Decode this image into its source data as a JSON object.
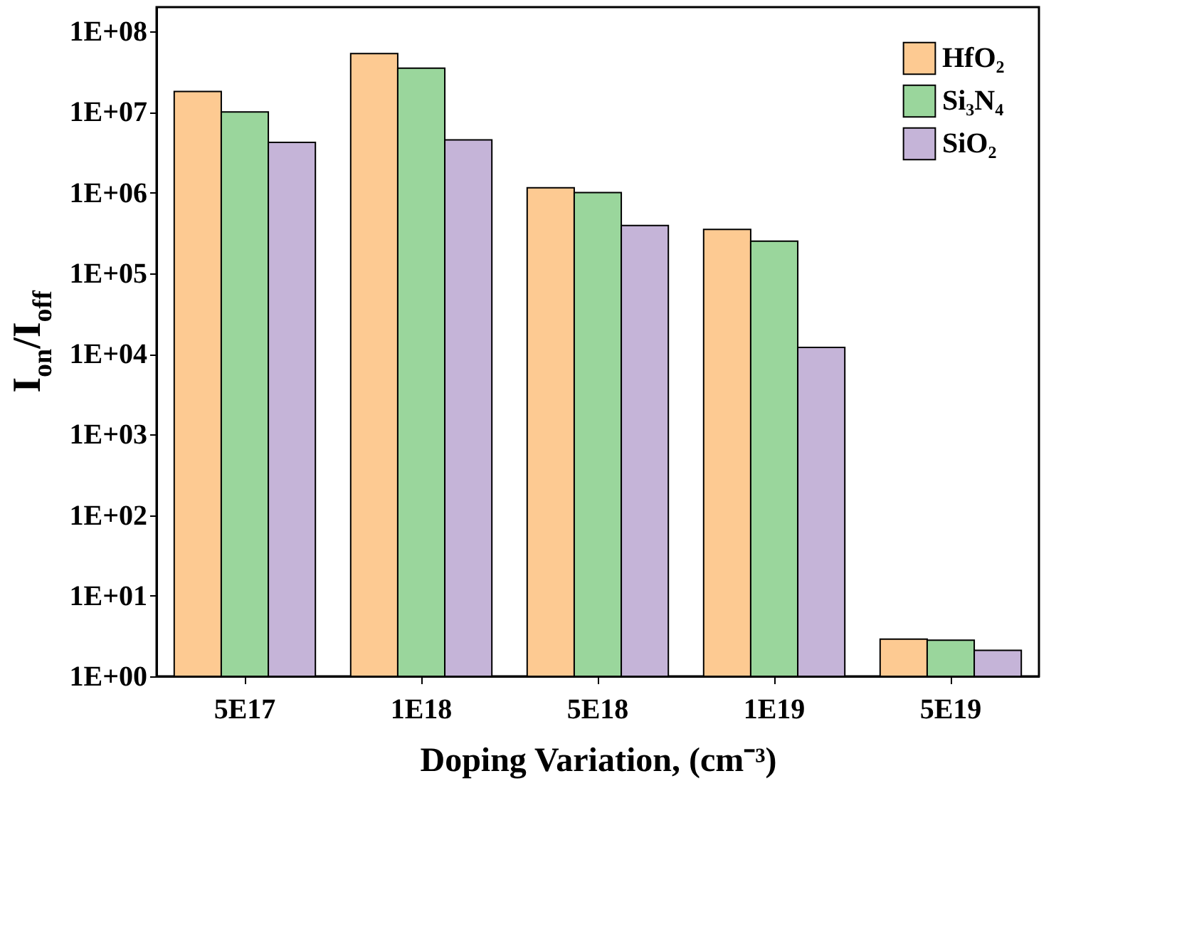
{
  "chart_data": {
    "type": "bar",
    "xlabel": "Doping Variation, (cm⁻³)",
    "ylabel": "I$_{on}$/I$_{off}$",
    "categories": [
      "5E17",
      "1E18",
      "5E18",
      "1E19",
      "5E19"
    ],
    "series": [
      {
        "name": "HfO₂",
        "color": "#fdca92",
        "values": [
          18000000.0,
          53000000.0,
          1150000.0,
          350000.0,
          2.9
        ]
      },
      {
        "name": "Si₃N₄",
        "color": "#9ad69c",
        "values": [
          10000000.0,
          35000000.0,
          1000000.0,
          250000.0,
          2.8
        ]
      },
      {
        "name": "SiO₂",
        "color": "#c5b4d8",
        "values": [
          4200000.0,
          4500000.0,
          390000.0,
          12000.0,
          2.1
        ]
      }
    ],
    "log": "y",
    "ylim": [
      1,
      200000000.0
    ],
    "yticks": [
      {
        "value": 1,
        "label": "1E+00"
      },
      {
        "value": 10,
        "label": "1E+01"
      },
      {
        "value": 100,
        "label": "1E+02"
      },
      {
        "value": 1000,
        "label": "1E+03"
      },
      {
        "value": 10000,
        "label": "1E+04"
      },
      {
        "value": 100000,
        "label": "1E+05"
      },
      {
        "value": 1000000,
        "label": "1E+06"
      },
      {
        "value": 10000000,
        "label": "1E+07"
      },
      {
        "value": 100000000,
        "label": "1E+08"
      }
    ],
    "grid": false,
    "legend": "top right"
  }
}
